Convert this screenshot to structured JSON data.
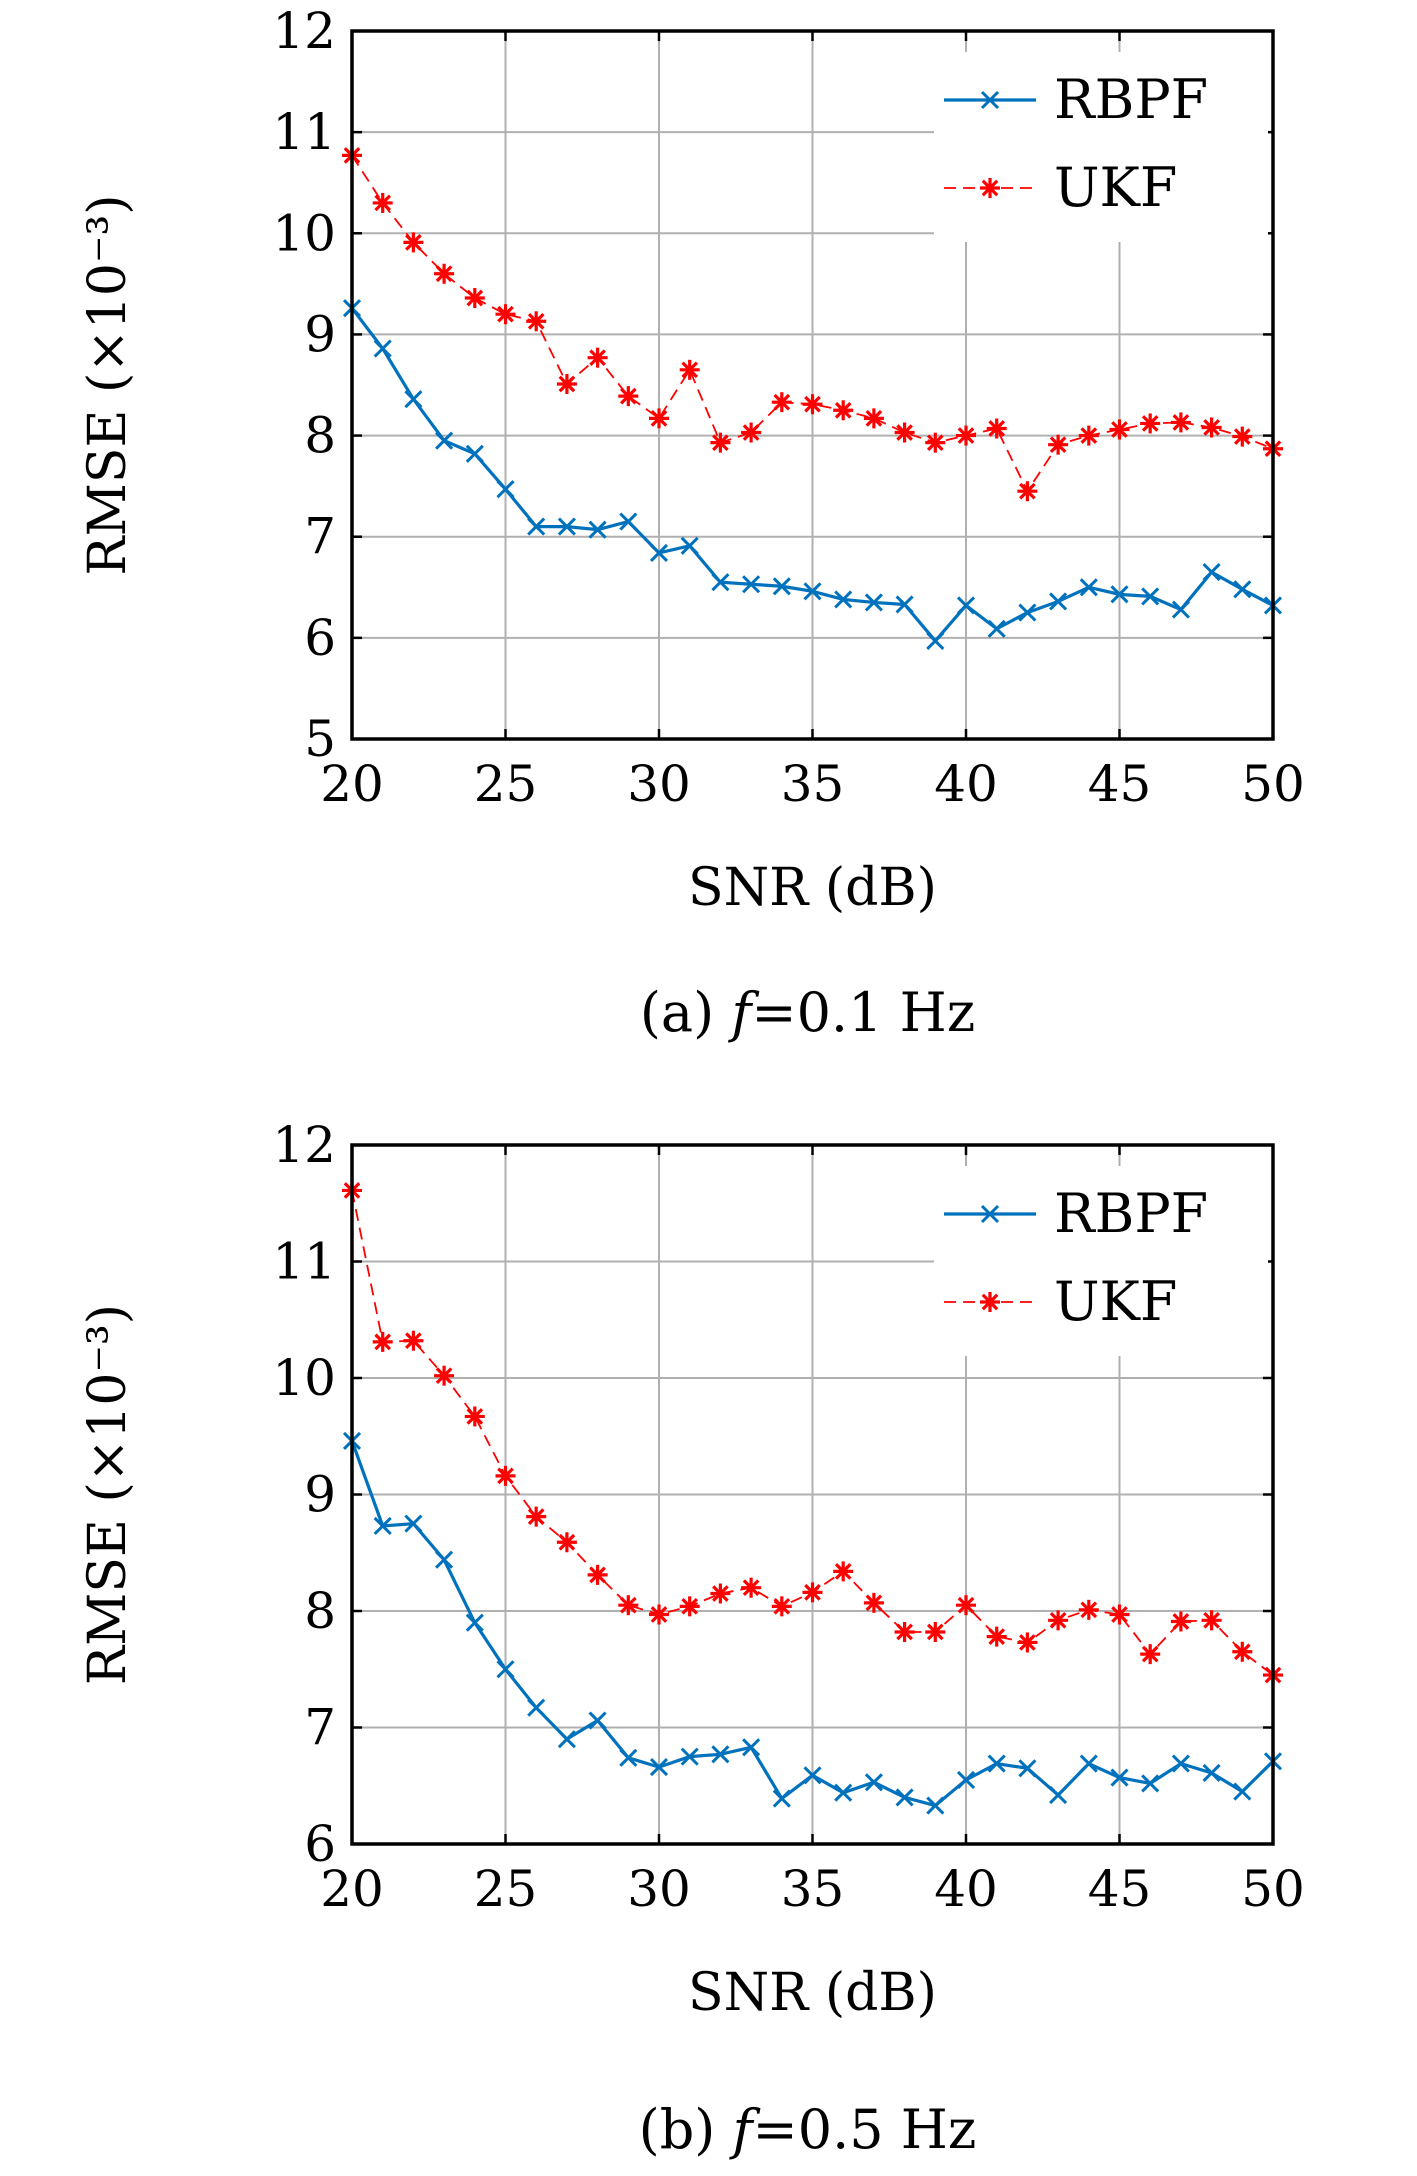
{
  "chart_data": [
    {
      "type": "line",
      "caption_prefix": "(a)",
      "caption_var": "f",
      "caption_suffix": "=0.1 Hz",
      "xlabel": "SNR (dB)",
      "ylabel": "RMSE (×10⁻³)",
      "xlim": [
        20,
        50
      ],
      "ylim": [
        5,
        12
      ],
      "xticks": [
        20,
        25,
        30,
        35,
        40,
        45,
        50
      ],
      "yticks": [
        5,
        6,
        7,
        8,
        9,
        10,
        11,
        12
      ],
      "grid": true,
      "legend_position": "top-right",
      "x": [
        20,
        21,
        22,
        23,
        24,
        25,
        26,
        27,
        28,
        29,
        30,
        31,
        32,
        33,
        34,
        35,
        36,
        37,
        38,
        39,
        40,
        41,
        42,
        43,
        44,
        45,
        46,
        47,
        48,
        49,
        50
      ],
      "series": [
        {
          "name": "RBPF",
          "color": "#0072BD",
          "marker": "x",
          "line": "solid",
          "values": [
            9.26,
            8.86,
            8.36,
            7.95,
            7.82,
            7.47,
            7.1,
            7.1,
            7.07,
            7.15,
            6.84,
            6.91,
            6.55,
            6.53,
            6.51,
            6.46,
            6.38,
            6.35,
            6.33,
            5.97,
            6.32,
            6.09,
            6.25,
            6.36,
            6.5,
            6.43,
            6.41,
            6.28,
            6.65,
            6.48,
            6.32
          ]
        },
        {
          "name": "UKF",
          "color": "#FF0000",
          "marker": "asterisk",
          "line": "dashed",
          "values": [
            10.77,
            10.3,
            9.91,
            9.6,
            9.36,
            9.2,
            9.13,
            8.51,
            8.77,
            8.39,
            8.17,
            8.65,
            7.93,
            8.03,
            8.33,
            8.31,
            8.25,
            8.17,
            8.03,
            7.93,
            8.0,
            8.07,
            7.45,
            7.91,
            8.0,
            8.06,
            8.12,
            8.13,
            8.08,
            7.99,
            7.87
          ]
        }
      ]
    },
    {
      "type": "line",
      "caption_prefix": "(b)",
      "caption_var": "f",
      "caption_suffix": "=0.5 Hz",
      "xlabel": "SNR (dB)",
      "ylabel": "RMSE (×10⁻³)",
      "xlim": [
        20,
        50
      ],
      "ylim": [
        6,
        12
      ],
      "xticks": [
        20,
        25,
        30,
        35,
        40,
        45,
        50
      ],
      "yticks": [
        6,
        7,
        8,
        9,
        10,
        11,
        12
      ],
      "grid": true,
      "legend_position": "top-right",
      "x": [
        20,
        21,
        22,
        23,
        24,
        25,
        26,
        27,
        28,
        29,
        30,
        31,
        32,
        33,
        34,
        35,
        36,
        37,
        38,
        39,
        40,
        41,
        42,
        43,
        44,
        45,
        46,
        47,
        48,
        49,
        50
      ],
      "series": [
        {
          "name": "RBPF",
          "color": "#0072BD",
          "marker": "x",
          "line": "solid",
          "values": [
            9.46,
            8.73,
            8.75,
            8.44,
            7.9,
            7.5,
            7.17,
            6.9,
            7.06,
            6.74,
            6.66,
            6.75,
            6.77,
            6.83,
            6.39,
            6.59,
            6.44,
            6.53,
            6.4,
            6.33,
            6.55,
            6.69,
            6.65,
            6.42,
            6.69,
            6.57,
            6.52,
            6.69,
            6.61,
            6.45,
            6.71
          ]
        },
        {
          "name": "UKF",
          "color": "#FF0000",
          "marker": "asterisk",
          "line": "dashed",
          "values": [
            11.61,
            10.31,
            10.32,
            10.02,
            9.67,
            9.16,
            8.81,
            8.59,
            8.31,
            8.05,
            7.97,
            8.04,
            8.15,
            8.2,
            8.04,
            8.16,
            8.34,
            8.07,
            7.82,
            7.82,
            8.05,
            7.78,
            7.73,
            7.92,
            8.01,
            7.97,
            7.63,
            7.91,
            7.92,
            7.65,
            7.45
          ]
        }
      ]
    }
  ]
}
